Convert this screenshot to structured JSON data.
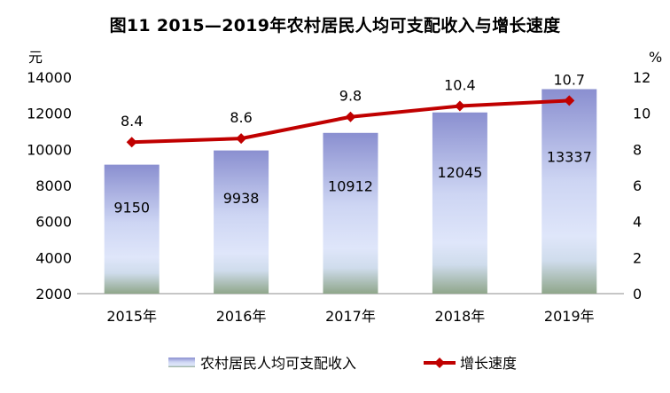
{
  "chart_data": {
    "type": "bar+line",
    "title": "图11  2015—2019年农村居民人均可支配收入与增长速度",
    "categories": [
      "2015年",
      "2016年",
      "2017年",
      "2018年",
      "2019年"
    ],
    "series": [
      {
        "name": "农村居民人均可支配收入",
        "type": "bar",
        "axis": "left",
        "values": [
          9150,
          9938,
          10912,
          12045,
          13337
        ]
      },
      {
        "name": "增长速度",
        "type": "line",
        "axis": "right",
        "values": [
          8.4,
          8.6,
          9.8,
          10.4,
          10.7
        ]
      }
    ],
    "y_left": {
      "unit": "元",
      "min": 2000,
      "max": 14000,
      "ticks": [
        2000,
        4000,
        6000,
        8000,
        10000,
        12000,
        14000
      ]
    },
    "y_right": {
      "unit": "%",
      "min": 0,
      "max": 12,
      "ticks": [
        0,
        2,
        4,
        6,
        8,
        10,
        12
      ]
    },
    "grid": false,
    "legend": "bottom",
    "colors": {
      "bar_top": "#8a8fd0",
      "bar_mid": "#d4dcf6",
      "bar_bottom": "#8fa68a",
      "line": "#c00000"
    }
  }
}
